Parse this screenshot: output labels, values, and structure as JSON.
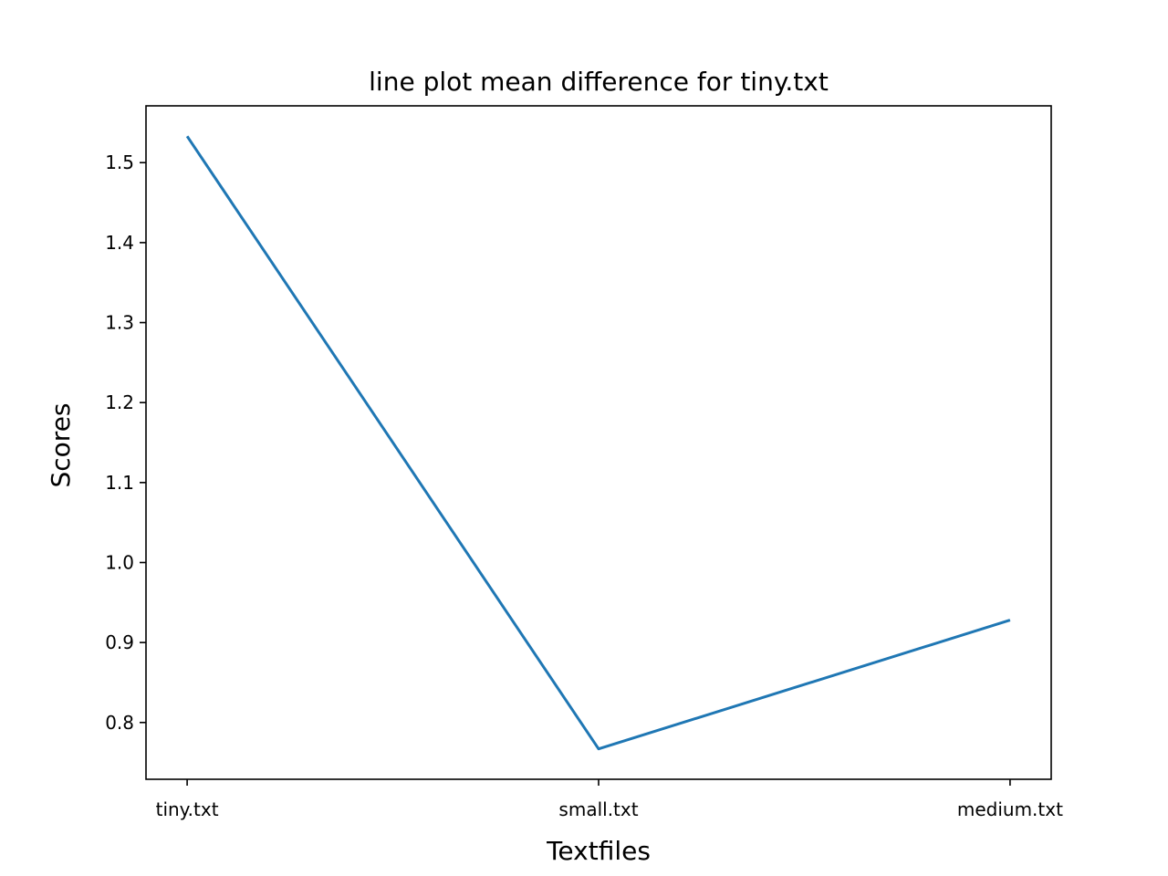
{
  "chart_data": {
    "type": "line",
    "title": "line plot mean difference for tiny.txt",
    "xlabel": "Textfiles",
    "ylabel": "Scores",
    "categories": [
      "tiny.txt",
      "small.txt",
      "medium.txt"
    ],
    "series": [
      {
        "values": [
          1.533,
          0.767,
          0.928
        ],
        "color": "#1f77b4"
      }
    ],
    "ylim": [
      0.729,
      1.571
    ],
    "yticks": [
      0.8,
      0.9,
      1.0,
      1.1,
      1.2,
      1.3,
      1.4,
      1.5
    ],
    "ytick_labels": [
      "0.8",
      "0.9",
      "1.0",
      "1.1",
      "1.2",
      "1.3",
      "1.4",
      "1.5"
    ],
    "grid": false,
    "legend": "none"
  }
}
